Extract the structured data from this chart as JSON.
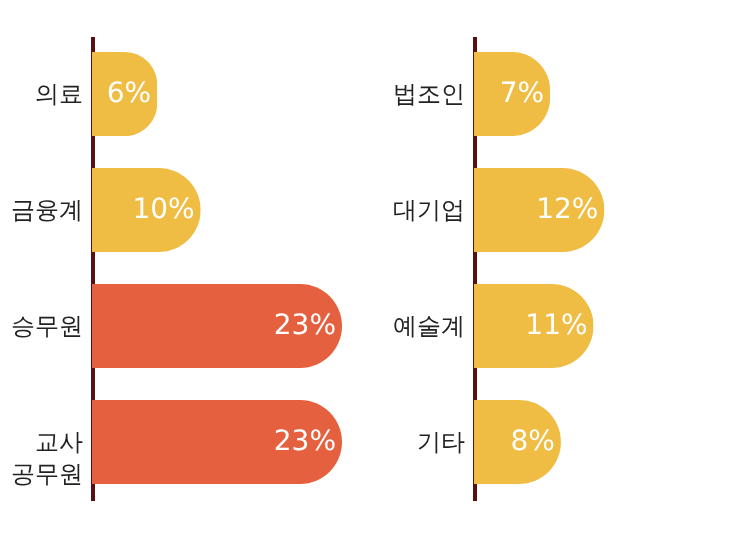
{
  "chart_data": [
    {
      "type": "bar",
      "orientation": "horizontal",
      "categories": [
        "의료",
        "금융계",
        "승무원",
        "교사\n공무원"
      ],
      "values": [
        6,
        10,
        23,
        23
      ],
      "value_labels": [
        "6%",
        "10%",
        "23%",
        "23%"
      ],
      "colors": [
        "#efbd44",
        "#efbd44",
        "#e4603f",
        "#e4603f"
      ],
      "grid": false,
      "tick_labels": "y"
    },
    {
      "type": "bar",
      "orientation": "horizontal",
      "categories": [
        "법조인",
        "대기업",
        "예술계",
        "기타"
      ],
      "values": [
        7,
        12,
        11,
        8
      ],
      "value_labels": [
        "7%",
        "12%",
        "11%",
        "8%"
      ],
      "colors": [
        "#efbd44",
        "#efbd44",
        "#efbd44",
        "#efbd44"
      ],
      "grid": false,
      "tick_labels": "y"
    }
  ]
}
